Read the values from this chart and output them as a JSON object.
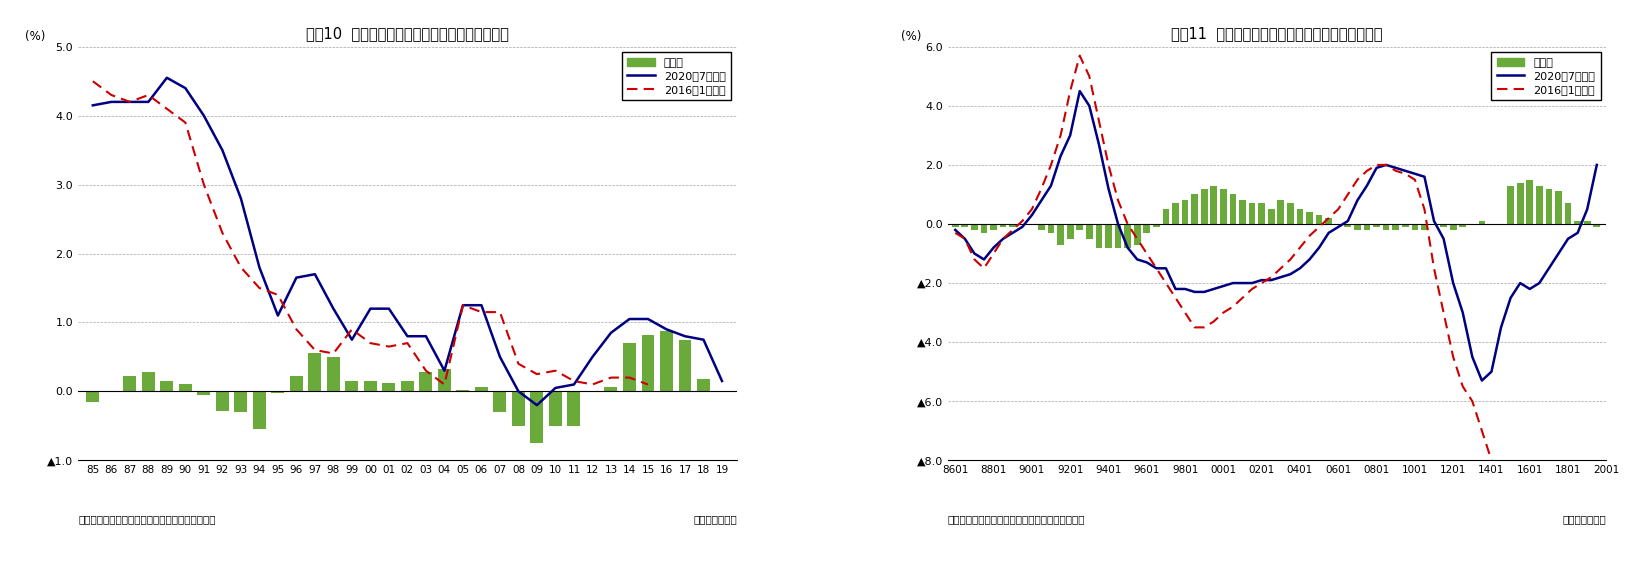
{
  "chart1": {
    "title": "図表10  改定される潜在成長率（日本銀行推計）",
    "ylabel": "(%)",
    "xlabel_right": "（年度・半期）",
    "source": "（資料）日本銀行「需給ギャップと潜在成長率」",
    "ylim": [
      -1.0,
      5.0
    ],
    "yticks": [
      -1.0,
      0.0,
      1.0,
      2.0,
      3.0,
      4.0,
      5.0
    ],
    "ytick_labels": [
      "▲1.0",
      "0.0",
      "1.0",
      "2.0",
      "3.0",
      "4.0",
      "5.0"
    ],
    "x_labels": [
      "85",
      "86",
      "87",
      "88",
      "89",
      "90",
      "91",
      "92",
      "93",
      "94",
      "95",
      "96",
      "97",
      "98",
      "99",
      "00",
      "01",
      "02",
      "03",
      "04",
      "05",
      "06",
      "07",
      "08",
      "09",
      "10",
      "11",
      "12",
      "13",
      "14",
      "15",
      "16",
      "17",
      "18",
      "19"
    ],
    "line2020_x": [
      0,
      1,
      2,
      3,
      4,
      5,
      6,
      7,
      8,
      9,
      10,
      11,
      12,
      13,
      14,
      15,
      16,
      17,
      18,
      19,
      20,
      21,
      22,
      23,
      24,
      25,
      26,
      27,
      28,
      29,
      30,
      31,
      32,
      33,
      34
    ],
    "line2020_y": [
      4.15,
      4.2,
      4.2,
      4.2,
      4.55,
      4.4,
      4.0,
      3.5,
      2.8,
      1.8,
      1.1,
      1.65,
      1.7,
      1.2,
      0.75,
      1.2,
      1.2,
      0.8,
      0.8,
      0.3,
      1.25,
      1.25,
      0.5,
      0.0,
      -0.2,
      0.05,
      0.1,
      0.5,
      0.85,
      1.05,
      1.05,
      0.9,
      0.8,
      0.75,
      0.15
    ],
    "line2016_x": [
      0,
      1,
      2,
      3,
      4,
      5,
      6,
      7,
      8,
      9,
      10,
      11,
      12,
      13,
      14,
      15,
      16,
      17,
      18,
      19,
      20,
      21,
      22,
      23,
      24,
      25,
      26,
      27,
      28,
      29,
      30
    ],
    "line2016_y": [
      4.5,
      4.3,
      4.2,
      4.3,
      4.1,
      3.9,
      3.0,
      2.3,
      1.8,
      1.5,
      1.4,
      0.9,
      0.6,
      0.55,
      0.9,
      0.7,
      0.65,
      0.7,
      0.3,
      0.1,
      1.25,
      1.15,
      1.15,
      0.4,
      0.25,
      0.3,
      0.15,
      0.1,
      0.2,
      0.2,
      0.1
    ],
    "bar_x": [
      0,
      1,
      2,
      3,
      4,
      5,
      6,
      7,
      8,
      9,
      10,
      11,
      12,
      13,
      14,
      15,
      16,
      17,
      18,
      19,
      20,
      21,
      22,
      23,
      24,
      25,
      26,
      27,
      28,
      29,
      30,
      31,
      32,
      33,
      34
    ],
    "bar_y": [
      -0.15,
      0.0,
      0.22,
      0.28,
      0.15,
      0.1,
      -0.05,
      -0.28,
      -0.3,
      -0.55,
      -0.02,
      0.22,
      0.55,
      0.5,
      0.15,
      0.15,
      0.12,
      0.15,
      0.28,
      0.32,
      0.02,
      0.07,
      -0.3,
      -0.5,
      -0.75,
      -0.5,
      -0.5,
      0.0,
      0.07,
      0.7,
      0.82,
      0.87,
      0.75,
      0.18,
      0.0
    ],
    "bar_color": "#6aaa3a",
    "line2020_color": "#000080",
    "line2016_color": "#cc0000",
    "legend_labels": [
      "改定幅",
      "2020年7月時点",
      "2016年1月時点"
    ]
  },
  "chart2": {
    "title": "図表11  改定される需給ギャップ（日本銀行推計）",
    "ylabel": "(%)",
    "xlabel_right": "（年・四半期）",
    "source": "（資料）日本銀行「需給ギャップと潜在成長率」",
    "ylim": [
      -8.0,
      6.0
    ],
    "yticks": [
      -8.0,
      -6.0,
      -4.0,
      -2.0,
      0.0,
      2.0,
      4.0,
      6.0
    ],
    "ytick_labels": [
      "▲8.0",
      "▲6.0",
      "▲4.0",
      "▲2.0",
      "0.0",
      "2.0",
      "4.0",
      "6.0"
    ],
    "x_labels": [
      "8601",
      "8801",
      "9001",
      "9201",
      "9401",
      "9601",
      "9801",
      "0001",
      "0201",
      "0401",
      "0601",
      "0801",
      "1001",
      "1201",
      "1401",
      "1601",
      "1801",
      "2001"
    ],
    "line2020_x": [
      0,
      1,
      2,
      3,
      4,
      5,
      6,
      7,
      8,
      9,
      10,
      11,
      12,
      13,
      14,
      15,
      16,
      17,
      18,
      19,
      20,
      21,
      22,
      23,
      24,
      25,
      26,
      27,
      28,
      29,
      30,
      31,
      32,
      33,
      34,
      35,
      36,
      37,
      38,
      39,
      40,
      41,
      42,
      43,
      44,
      45,
      46,
      47,
      48,
      49,
      50,
      51,
      52,
      53,
      54,
      55,
      56,
      57,
      58,
      59,
      60,
      61,
      62,
      63,
      64,
      65,
      66,
      67
    ],
    "line2020_y": [
      -0.2,
      -0.5,
      -1.0,
      -1.2,
      -0.8,
      -0.5,
      -0.3,
      -0.1,
      0.3,
      0.8,
      1.3,
      2.3,
      3.0,
      4.5,
      4.0,
      2.7,
      1.2,
      0.0,
      -0.8,
      -1.2,
      -1.3,
      -1.5,
      -1.5,
      -2.2,
      -2.2,
      -2.3,
      -2.3,
      -2.2,
      -2.1,
      -2.0,
      -2.0,
      -2.0,
      -1.9,
      -1.9,
      -1.8,
      -1.7,
      -1.5,
      -1.2,
      -0.8,
      -0.3,
      -0.1,
      0.1,
      0.8,
      1.3,
      1.9,
      2.0,
      1.9,
      1.8,
      1.7,
      1.6,
      0.1,
      -0.5,
      -2.0,
      -3.0,
      -4.5,
      -5.3,
      -5.0,
      -3.5,
      -2.5,
      -2.0,
      -2.2,
      -2.0,
      -1.5,
      -1.0,
      -0.5,
      -0.3,
      0.5,
      2.0
    ],
    "line2016_x": [
      0,
      1,
      2,
      3,
      4,
      5,
      6,
      7,
      8,
      9,
      10,
      11,
      12,
      13,
      14,
      15,
      16,
      17,
      18,
      19,
      20,
      21,
      22,
      23,
      24,
      25,
      26,
      27,
      28,
      29,
      30,
      31,
      32,
      33,
      34,
      35,
      36,
      37,
      38,
      39,
      40,
      41,
      42,
      43,
      44,
      45,
      46,
      47,
      48,
      49,
      50,
      51,
      52,
      53,
      54,
      55,
      56
    ],
    "line2016_y": [
      -0.3,
      -0.5,
      -1.2,
      -1.5,
      -1.0,
      -0.5,
      -0.2,
      0.1,
      0.5,
      1.2,
      2.0,
      3.0,
      4.5,
      5.7,
      5.0,
      3.5,
      2.0,
      0.8,
      0.0,
      -0.5,
      -1.0,
      -1.5,
      -2.0,
      -2.5,
      -3.0,
      -3.5,
      -3.5,
      -3.3,
      -3.0,
      -2.8,
      -2.5,
      -2.2,
      -2.0,
      -1.8,
      -1.5,
      -1.2,
      -0.8,
      -0.4,
      -0.1,
      0.2,
      0.5,
      1.0,
      1.5,
      1.8,
      2.0,
      2.0,
      1.8,
      1.7,
      1.5,
      0.5,
      -1.5,
      -3.0,
      -4.5,
      -5.5,
      -6.0,
      -7.0,
      -8.0
    ],
    "bar_x": [
      0,
      1,
      2,
      3,
      4,
      5,
      6,
      7,
      8,
      9,
      10,
      11,
      12,
      13,
      14,
      15,
      16,
      17,
      18,
      19,
      20,
      21,
      22,
      23,
      24,
      25,
      26,
      27,
      28,
      29,
      30,
      31,
      32,
      33,
      34,
      35,
      36,
      37,
      38,
      39,
      40,
      41,
      42,
      43,
      44,
      45,
      46,
      47,
      48,
      49,
      50,
      51,
      52,
      53,
      54,
      55,
      56,
      57,
      58,
      59,
      60,
      61,
      62,
      63,
      64,
      65,
      66,
      67
    ],
    "bar_y": [
      -0.1,
      -0.1,
      -0.2,
      -0.3,
      -0.2,
      -0.1,
      -0.1,
      0.0,
      0.0,
      -0.2,
      -0.3,
      -0.7,
      -0.5,
      -0.2,
      -0.5,
      -0.8,
      -0.8,
      -0.8,
      -0.8,
      -0.7,
      -0.3,
      -0.1,
      0.5,
      0.7,
      0.8,
      1.0,
      1.2,
      1.3,
      1.2,
      1.0,
      0.8,
      0.7,
      0.7,
      0.5,
      0.8,
      0.7,
      0.5,
      0.4,
      0.3,
      0.2,
      0.0,
      -0.1,
      -0.2,
      -0.2,
      -0.1,
      -0.2,
      -0.2,
      -0.1,
      -0.2,
      -0.2,
      0.0,
      -0.1,
      -0.2,
      -0.1,
      0.0,
      0.1,
      0.0,
      0.0,
      1.3,
      1.4,
      1.5,
      1.3,
      1.2,
      1.1,
      0.7,
      0.1,
      0.1,
      -0.1
    ],
    "bar_color": "#6aaa3a",
    "line2020_color": "#000080",
    "line2016_color": "#cc0000",
    "legend_labels": [
      "改定幅",
      "2020年7月時点",
      "2016年1月時点"
    ]
  }
}
